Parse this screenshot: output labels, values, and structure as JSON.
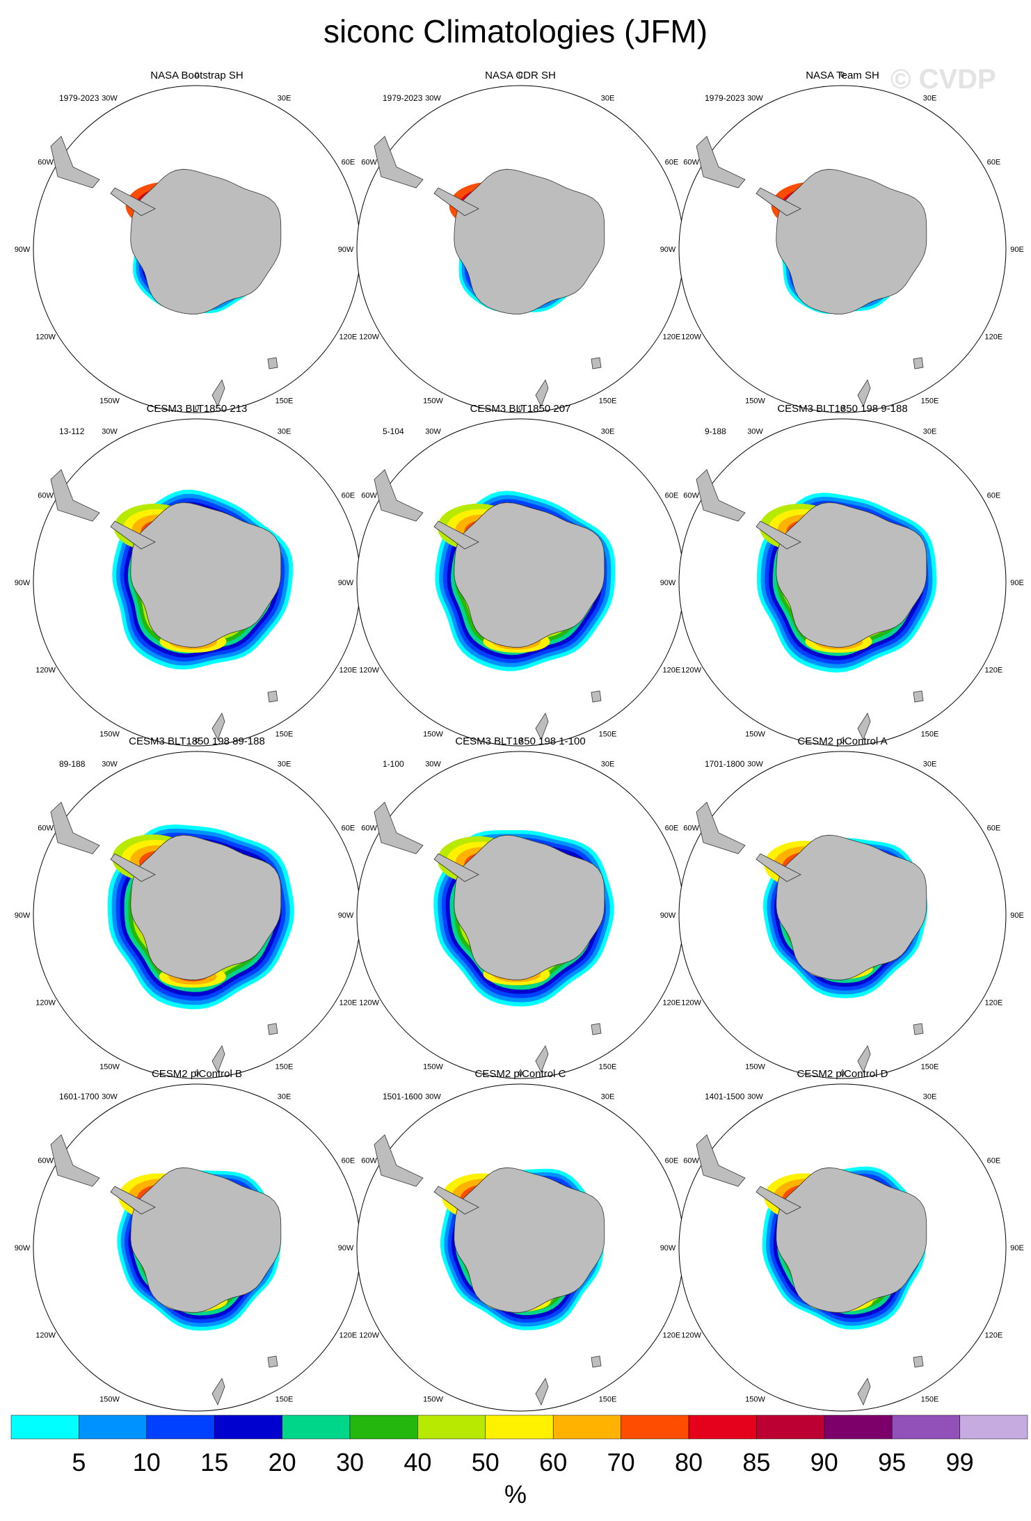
{
  "chart_data": {
    "type": "heatmap",
    "projection": "south-polar-stereographic",
    "title": "siconc Climatologies (JFM)",
    "watermark": "© CVDP",
    "units": "%",
    "longitude_labels": [
      "0",
      "30E",
      "60E",
      "90E",
      "120E",
      "150E",
      "180",
      "150W",
      "120W",
      "90W",
      "60W",
      "30W"
    ],
    "colorbar": {
      "colors": [
        "#00ffff",
        "#0093ff",
        "#0040ff",
        "#0000cf",
        "#00d68a",
        "#24b80f",
        "#b8e900",
        "#fff200",
        "#ffb200",
        "#ff4d00",
        "#e5001b",
        "#bd0033",
        "#7d006a",
        "#9151b9",
        "#c5abe0"
      ],
      "labels": [
        "5",
        "10",
        "15",
        "20",
        "30",
        "40",
        "50",
        "60",
        "70",
        "80",
        "85",
        "90",
        "95",
        "99"
      ]
    },
    "land_color": "#bdbdbd",
    "panels": [
      {
        "title": "NASA Bootstrap SH",
        "period": "1979-2023",
        "extent": 0.42,
        "peak": 13
      },
      {
        "title": "NASA CDR SH",
        "period": "1979-2023",
        "extent": 0.42,
        "peak": 13
      },
      {
        "title": "NASA Team SH",
        "period": "1979-2023",
        "extent": 0.42,
        "peak": 13
      },
      {
        "title": "CESM3 BLT1850 213",
        "period": "13-112",
        "extent": 0.55,
        "peak": 10
      },
      {
        "title": "CESM3 BLT1850 207",
        "period": "5-104",
        "extent": 0.55,
        "peak": 10
      },
      {
        "title": "CESM3 BLT1850 198 9-188",
        "period": "9-188",
        "extent": 0.55,
        "peak": 10
      },
      {
        "title": "CESM3 BLT1850 198 89-188",
        "period": "89-188",
        "extent": 0.57,
        "peak": 10
      },
      {
        "title": "CESM3 BLT1850 198 1-100",
        "period": "1-100",
        "extent": 0.55,
        "peak": 10
      },
      {
        "title": "CESM2 piControl A",
        "period": "1701-1800",
        "extent": 0.5,
        "peak": 11
      },
      {
        "title": "CESM2 piControl B",
        "period": "1601-1700",
        "extent": 0.5,
        "peak": 11
      },
      {
        "title": "CESM2 piControl C",
        "period": "1501-1600",
        "extent": 0.5,
        "peak": 11
      },
      {
        "title": "CESM2 piControl D",
        "period": "1401-1500",
        "extent": 0.5,
        "peak": 11
      }
    ]
  }
}
